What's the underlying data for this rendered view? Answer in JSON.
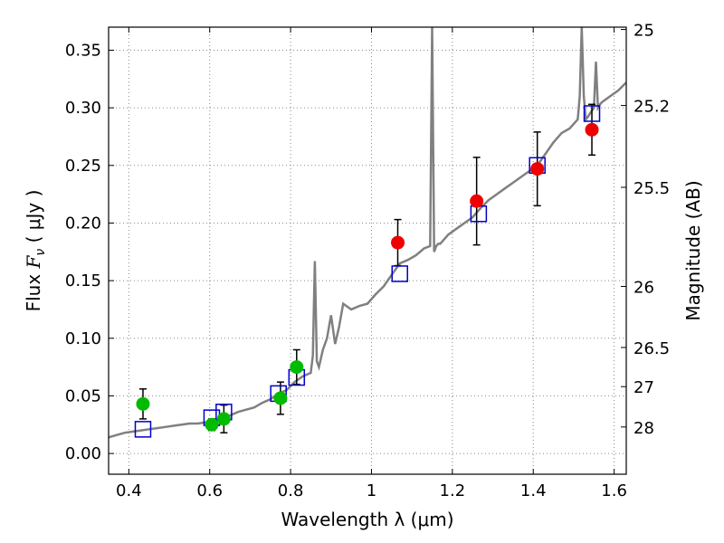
{
  "chart_data": {
    "type": "scatter",
    "xlabel": "Wavelength  λ (μm)",
    "ylabel_prefix": "Flux  ",
    "ylabel_symbol": "F",
    "ylabel_sub": "ν",
    "ylabel_units": "  ( μJy )",
    "y2label": "Magnitude (AB)",
    "xlim": [
      0.35,
      1.63
    ],
    "ylim": [
      -0.018,
      0.37
    ],
    "grid": true,
    "xticks": [
      {
        "value": 0.4,
        "label": "0.4"
      },
      {
        "value": 0.6,
        "label": "0.6"
      },
      {
        "value": 0.8,
        "label": "0.8"
      },
      {
        "value": 1.0,
        "label": "1"
      },
      {
        "value": 1.2,
        "label": "1.2"
      },
      {
        "value": 1.4,
        "label": "1.4"
      },
      {
        "value": 1.6,
        "label": "1.6"
      }
    ],
    "yticks": [
      {
        "value": 0.0,
        "label": "0.00"
      },
      {
        "value": 0.05,
        "label": "0.05"
      },
      {
        "value": 0.1,
        "label": "0.10"
      },
      {
        "value": 0.15,
        "label": "0.15"
      },
      {
        "value": 0.2,
        "label": "0.20"
      },
      {
        "value": 0.25,
        "label": "0.25"
      },
      {
        "value": 0.3,
        "label": "0.30"
      },
      {
        "value": 0.35,
        "label": "0.35"
      }
    ],
    "y2ticks": [
      {
        "flux": 0.368,
        "label": "25"
      },
      {
        "flux": 0.302,
        "label": "25.2"
      },
      {
        "flux": 0.231,
        "label": "25.5"
      },
      {
        "flux": 0.145,
        "label": "26"
      },
      {
        "flux": 0.092,
        "label": "26.5"
      },
      {
        "flux": 0.058,
        "label": "27"
      },
      {
        "flux": 0.023,
        "label": "28"
      }
    ],
    "colors": {
      "spectrum": "#808080",
      "model": "#0000cc",
      "optical": "#00bb00",
      "infrared": "#ee0000",
      "errorbar": "#000000",
      "grid": "#888888"
    },
    "spectrum": {
      "x": [
        0.35,
        0.37,
        0.39,
        0.41,
        0.43,
        0.45,
        0.47,
        0.49,
        0.51,
        0.53,
        0.55,
        0.57,
        0.59,
        0.61,
        0.63,
        0.65,
        0.67,
        0.69,
        0.71,
        0.73,
        0.75,
        0.77,
        0.79,
        0.81,
        0.83,
        0.85,
        0.855,
        0.86,
        0.865,
        0.87,
        0.88,
        0.89,
        0.9,
        0.91,
        0.92,
        0.93,
        0.95,
        0.97,
        0.99,
        1.01,
        1.03,
        1.05,
        1.07,
        1.09,
        1.11,
        1.13,
        1.145,
        1.15,
        1.155,
        1.16,
        1.165,
        1.17,
        1.19,
        1.21,
        1.23,
        1.25,
        1.27,
        1.29,
        1.31,
        1.33,
        1.35,
        1.37,
        1.39,
        1.41,
        1.43,
        1.45,
        1.47,
        1.49,
        1.51,
        1.515,
        1.52,
        1.525,
        1.53,
        1.535,
        1.54,
        1.55,
        1.555,
        1.56,
        1.565,
        1.57,
        1.59,
        1.61,
        1.63
      ],
      "y": [
        0.014,
        0.016,
        0.018,
        0.019,
        0.02,
        0.021,
        0.022,
        0.023,
        0.024,
        0.025,
        0.026,
        0.026,
        0.027,
        0.028,
        0.03,
        0.033,
        0.036,
        0.038,
        0.04,
        0.044,
        0.047,
        0.052,
        0.055,
        0.062,
        0.067,
        0.07,
        0.085,
        0.167,
        0.08,
        0.075,
        0.09,
        0.1,
        0.12,
        0.095,
        0.11,
        0.13,
        0.125,
        0.128,
        0.13,
        0.138,
        0.145,
        0.155,
        0.165,
        0.168,
        0.172,
        0.178,
        0.18,
        0.37,
        0.175,
        0.18,
        0.182,
        0.182,
        0.19,
        0.195,
        0.2,
        0.205,
        0.213,
        0.22,
        0.225,
        0.23,
        0.235,
        0.24,
        0.245,
        0.25,
        0.26,
        0.27,
        0.278,
        0.282,
        0.29,
        0.31,
        0.37,
        0.31,
        0.29,
        0.292,
        0.295,
        0.3,
        0.34,
        0.3,
        0.303,
        0.305,
        0.31,
        0.315,
        0.322
      ]
    },
    "model_points": [
      {
        "x": 0.435,
        "y": 0.021
      },
      {
        "x": 0.605,
        "y": 0.031
      },
      {
        "x": 0.635,
        "y": 0.036
      },
      {
        "x": 0.77,
        "y": 0.052
      },
      {
        "x": 0.815,
        "y": 0.066
      },
      {
        "x": 1.07,
        "y": 0.156
      },
      {
        "x": 1.265,
        "y": 0.208
      },
      {
        "x": 1.41,
        "y": 0.25
      },
      {
        "x": 1.545,
        "y": 0.295
      }
    ],
    "optical_points": [
      {
        "x": 0.435,
        "y": 0.043,
        "err": 0.013
      },
      {
        "x": 0.605,
        "y": 0.025,
        "err": 0.005
      },
      {
        "x": 0.635,
        "y": 0.03,
        "err": 0.012
      },
      {
        "x": 0.775,
        "y": 0.048,
        "err": 0.014
      },
      {
        "x": 0.815,
        "y": 0.075,
        "err": 0.015
      }
    ],
    "infrared_points": [
      {
        "x": 1.065,
        "y": 0.183,
        "err": 0.02
      },
      {
        "x": 1.26,
        "y": 0.219,
        "err": 0.038
      },
      {
        "x": 1.41,
        "y": 0.247,
        "err": 0.032
      },
      {
        "x": 1.545,
        "y": 0.281,
        "err": 0.022
      }
    ]
  }
}
